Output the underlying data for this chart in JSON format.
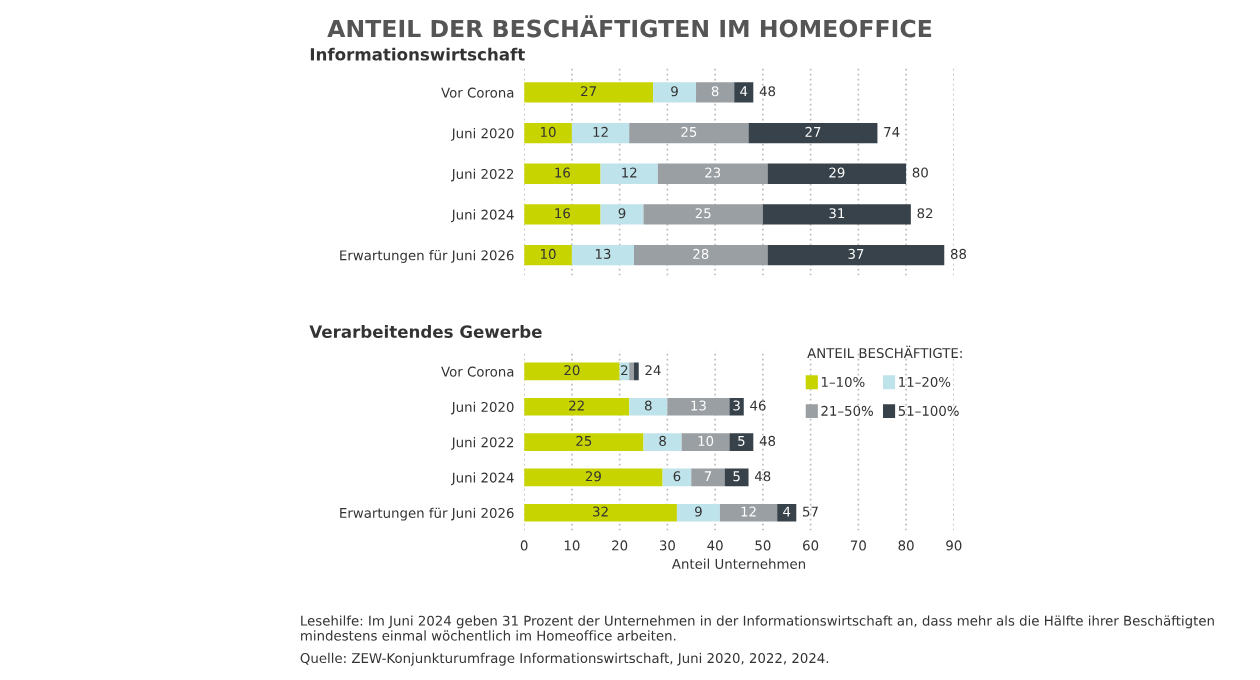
{
  "chart_data": [
    {
      "type": "bar",
      "orientation": "horizontal",
      "stacked": true,
      "title": "ANTEIL DER BESCHÄFTIGTEN IM HOMEOFFICE",
      "subtitle": "Informationswirtschaft",
      "categories": [
        "Vor Corona",
        "Juni 2020",
        "Juni 2022",
        "Juni 2024",
        "Erwartungen für Juni 2026"
      ],
      "series": [
        {
          "color": "#c8d400",
          "values": [
            27,
            10,
            16,
            16,
            10
          ],
          "value_labels": [
            "27",
            "10",
            "16",
            "16",
            "10"
          ]
        },
        {
          "color": "#bfe3ea",
          "values": [
            9,
            12,
            12,
            9,
            13
          ],
          "value_labels": [
            "9",
            "12",
            "12",
            "9",
            "13"
          ]
        },
        {
          "color": "#9a9fa3",
          "values": [
            8,
            25,
            23,
            25,
            28
          ],
          "value_labels": [
            "8",
            "25",
            "23",
            "25",
            "28"
          ]
        },
        {
          "color": "#37424a",
          "values": [
            4,
            27,
            29,
            31,
            37
          ],
          "value_labels": [
            "4",
            "27",
            "29",
            "31",
            "37"
          ]
        }
      ],
      "totals": [
        "48",
        "74",
        "80",
        "82",
        "88"
      ],
      "xlim": [
        0,
        90
      ],
      "xticks": [
        0,
        10,
        20,
        30,
        40,
        50,
        60,
        70,
        80,
        90
      ],
      "tick_labels": "y",
      "grid": "x",
      "legend": false
    },
    {
      "type": "bar",
      "orientation": "horizontal",
      "stacked": true,
      "title": "Verarbeitendes Gewerbe",
      "xlabel": "Anteil Unternehmen",
      "legend_title": "ANTEIL BESCHÄFTIGTE:",
      "categories": [
        "Vor Corona",
        "Juni 2020",
        "Juni 2022",
        "Juni 2024",
        "Erwartungen für Juni 2026"
      ],
      "series": [
        {
          "name": "1–10%",
          "color": "#c8d400",
          "values": [
            20,
            22,
            25,
            29,
            32
          ],
          "value_labels": [
            "20",
            "22",
            "25",
            "29",
            "32"
          ]
        },
        {
          "name": "11–20%",
          "color": "#bfe3ea",
          "values": [
            2,
            8,
            8,
            6,
            9
          ],
          "value_labels": [
            "2",
            "8",
            "8",
            "6",
            "9"
          ]
        },
        {
          "name": "21–50%",
          "color": "#9a9fa3",
          "values": [
            1,
            13,
            10,
            7,
            12
          ],
          "value_labels": [
            null,
            "13",
            "10",
            "7",
            "12"
          ]
        },
        {
          "name": "51–100%",
          "color": "#37424a",
          "values": [
            1,
            3,
            5,
            5,
            4
          ],
          "value_labels": [
            null,
            "3",
            "5",
            "5",
            "4"
          ]
        }
      ],
      "totals": [
        "24",
        "46",
        "48",
        "48",
        "57"
      ],
      "xlim": [
        0,
        90
      ],
      "xticks": [
        0,
        10,
        20,
        30,
        40,
        50,
        60,
        70,
        80,
        90
      ],
      "grid": "x",
      "legend": "top right",
      "annotations": [
        "Lesehilfe: Im Juni 2024 geben 31 Prozent der Unternehmen in der Informationswirtschaft an, dass mehr als die Hälfte ihrer Beschäftigten mindestens einmal wöchentlich im Homeoffice arbeiten.",
        "Quelle: ZEW-Konjunkturumfrage Informationswirtschaft, Juni 2020, 2022, 2024."
      ]
    }
  ]
}
